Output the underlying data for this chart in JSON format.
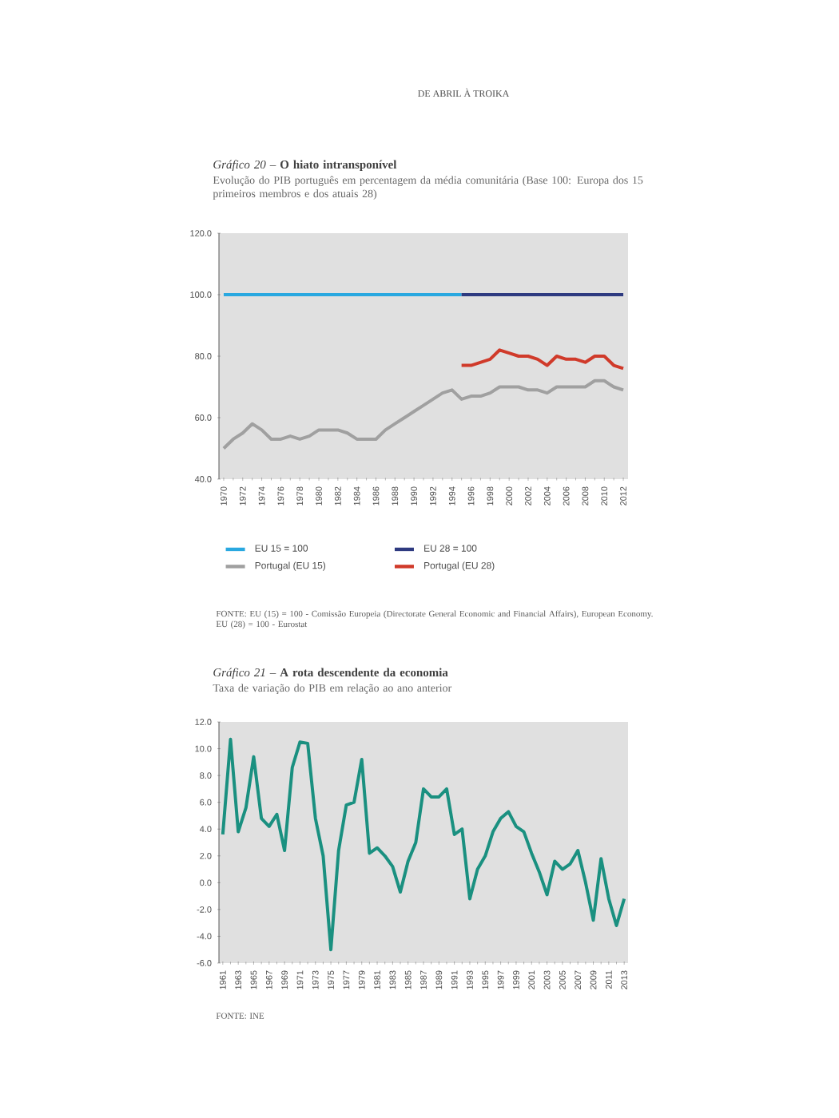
{
  "chart_data": [
    {
      "type": "line",
      "title": "*Gráfico 20 –* **O hiato intransponível**",
      "subtitle": "Evolução do PIB português em percentagem da média comunitária (Base 100: Europa dos 15 primeiros membros e dos atuais 28)",
      "annotations": [
        "DE ABRIL À TROIKA",
        "FONTE: EU (15) = 100 - Comissão Europeia (Directorate General Economic and Financial Affairs), European Economy. EU (28) = 100 - Eurostat"
      ],
      "xlim": [
        1969.5,
        2012.5
      ],
      "xticks": [
        1970,
        1972,
        1974,
        1976,
        1978,
        1980,
        1982,
        1984,
        1986,
        1988,
        1990,
        1992,
        1994,
        1996,
        1998,
        2000,
        2002,
        2004,
        2006,
        2008,
        2010,
        2012
      ],
      "ylim": [
        40,
        120
      ],
      "yticks": [
        {
          "value": 40,
          "label": "40.0"
        },
        {
          "value": 60,
          "label": "60.0"
        },
        {
          "value": 80,
          "label": "80.0"
        },
        {
          "value": 100,
          "label": "100.0"
        },
        {
          "value": 120,
          "label": "120.0"
        }
      ],
      "legend": "bottom",
      "marker": "none",
      "line_style": "solid",
      "series": [
        {
          "name": "EU 15 = 100",
          "color": "#29a8e0",
          "x": [
            1970,
            1995
          ],
          "values": [
            100,
            100
          ]
        },
        {
          "name": "EU 28 = 100",
          "color": "#2e3a80",
          "x": [
            1995,
            2012
          ],
          "values": [
            100,
            100
          ]
        },
        {
          "name": "Portugal (EU 15)",
          "color": "#a0a0a0",
          "x": [
            1970,
            1971,
            1972,
            1973,
            1974,
            1975,
            1976,
            1977,
            1978,
            1979,
            1980,
            1981,
            1982,
            1983,
            1984,
            1985,
            1986,
            1987,
            1988,
            1989,
            1990,
            1991,
            1992,
            1993,
            1994,
            1995,
            1996,
            1997,
            1998,
            1999,
            2000,
            2001,
            2002,
            2003,
            2004,
            2005,
            2006,
            2007,
            2008,
            2009,
            2010,
            2011,
            2012
          ],
          "values": [
            50,
            53,
            55,
            58,
            56,
            53,
            53,
            54,
            53,
            54,
            56,
            56,
            56,
            55,
            53,
            53,
            53,
            56,
            58,
            60,
            62,
            64,
            66,
            68,
            69,
            66,
            67,
            67,
            68,
            70,
            70,
            70,
            69,
            69,
            68,
            70,
            70,
            70,
            70,
            72,
            72,
            70,
            69
          ]
        },
        {
          "name": "Portugal (EU 28)",
          "color": "#d03a2a",
          "x": [
            1995,
            1996,
            1997,
            1998,
            1999,
            2000,
            2001,
            2002,
            2003,
            2004,
            2005,
            2006,
            2007,
            2008,
            2009,
            2010,
            2011,
            2012
          ],
          "values": [
            77,
            77,
            78,
            79,
            82,
            81,
            80,
            80,
            79,
            77,
            80,
            79,
            79,
            78,
            80,
            80,
            77,
            76
          ]
        }
      ]
    },
    {
      "type": "line",
      "title": "*Gráfico 21 –* **A rota descendente da economia**",
      "subtitle": "Taxa de variação do PIB em relação ao ano anterior",
      "annotations": [
        "FONTE: INE"
      ],
      "xlim": [
        1960.5,
        2013.5
      ],
      "xticks": [
        1961,
        1963,
        1965,
        1967,
        1969,
        1971,
        1973,
        1975,
        1977,
        1979,
        1981,
        1983,
        1985,
        1987,
        1989,
        1991,
        1993,
        1995,
        1997,
        1999,
        2001,
        2003,
        2005,
        2007,
        2009,
        2011,
        2013
      ],
      "ylim": [
        -6,
        12
      ],
      "yticks": [
        {
          "value": -6,
          "label": "-6.0"
        },
        {
          "value": -4,
          "label": "-4.0"
        },
        {
          "value": -2,
          "label": "-2.0"
        },
        {
          "value": 0,
          "label": "0.0"
        },
        {
          "value": 2,
          "label": "2.0"
        },
        {
          "value": 4,
          "label": "4.0"
        },
        {
          "value": 6,
          "label": "6.0"
        },
        {
          "value": 8,
          "label": "8.0"
        },
        {
          "value": 10,
          "label": "10.0"
        },
        {
          "value": 12,
          "label": "12.0"
        }
      ],
      "marker": "none",
      "line_style": "solid",
      "series": [
        {
          "color": "#1a9080",
          "x": [
            1961,
            1962,
            1963,
            1964,
            1965,
            1966,
            1967,
            1968,
            1969,
            1970,
            1971,
            1972,
            1973,
            1974,
            1975,
            1976,
            1977,
            1978,
            1979,
            1980,
            1981,
            1982,
            1983,
            1984,
            1985,
            1986,
            1987,
            1988,
            1989,
            1990,
            1991,
            1992,
            1993,
            1994,
            1995,
            1996,
            1997,
            1998,
            1999,
            2000,
            2001,
            2002,
            2003,
            2004,
            2005,
            2006,
            2007,
            2008,
            2009,
            2010,
            2011,
            2012,
            2013
          ],
          "values": [
            3.6,
            10.7,
            3.8,
            5.6,
            9.4,
            4.8,
            4.2,
            5.1,
            2.4,
            8.6,
            10.5,
            10.4,
            4.8,
            2.0,
            -5.0,
            2.4,
            5.8,
            6.0,
            9.2,
            2.2,
            2.6,
            2.0,
            1.2,
            -0.7,
            1.6,
            3.0,
            7.0,
            6.4,
            6.4,
            7.0,
            3.6,
            4.0,
            -1.2,
            1.0,
            2.0,
            3.8,
            4.8,
            5.3,
            4.2,
            3.8,
            2.2,
            0.8,
            -0.9,
            1.6,
            1.0,
            1.4,
            2.4,
            0.0,
            -2.8,
            1.8,
            -1.2,
            -3.2,
            -1.2
          ]
        }
      ]
    }
  ]
}
